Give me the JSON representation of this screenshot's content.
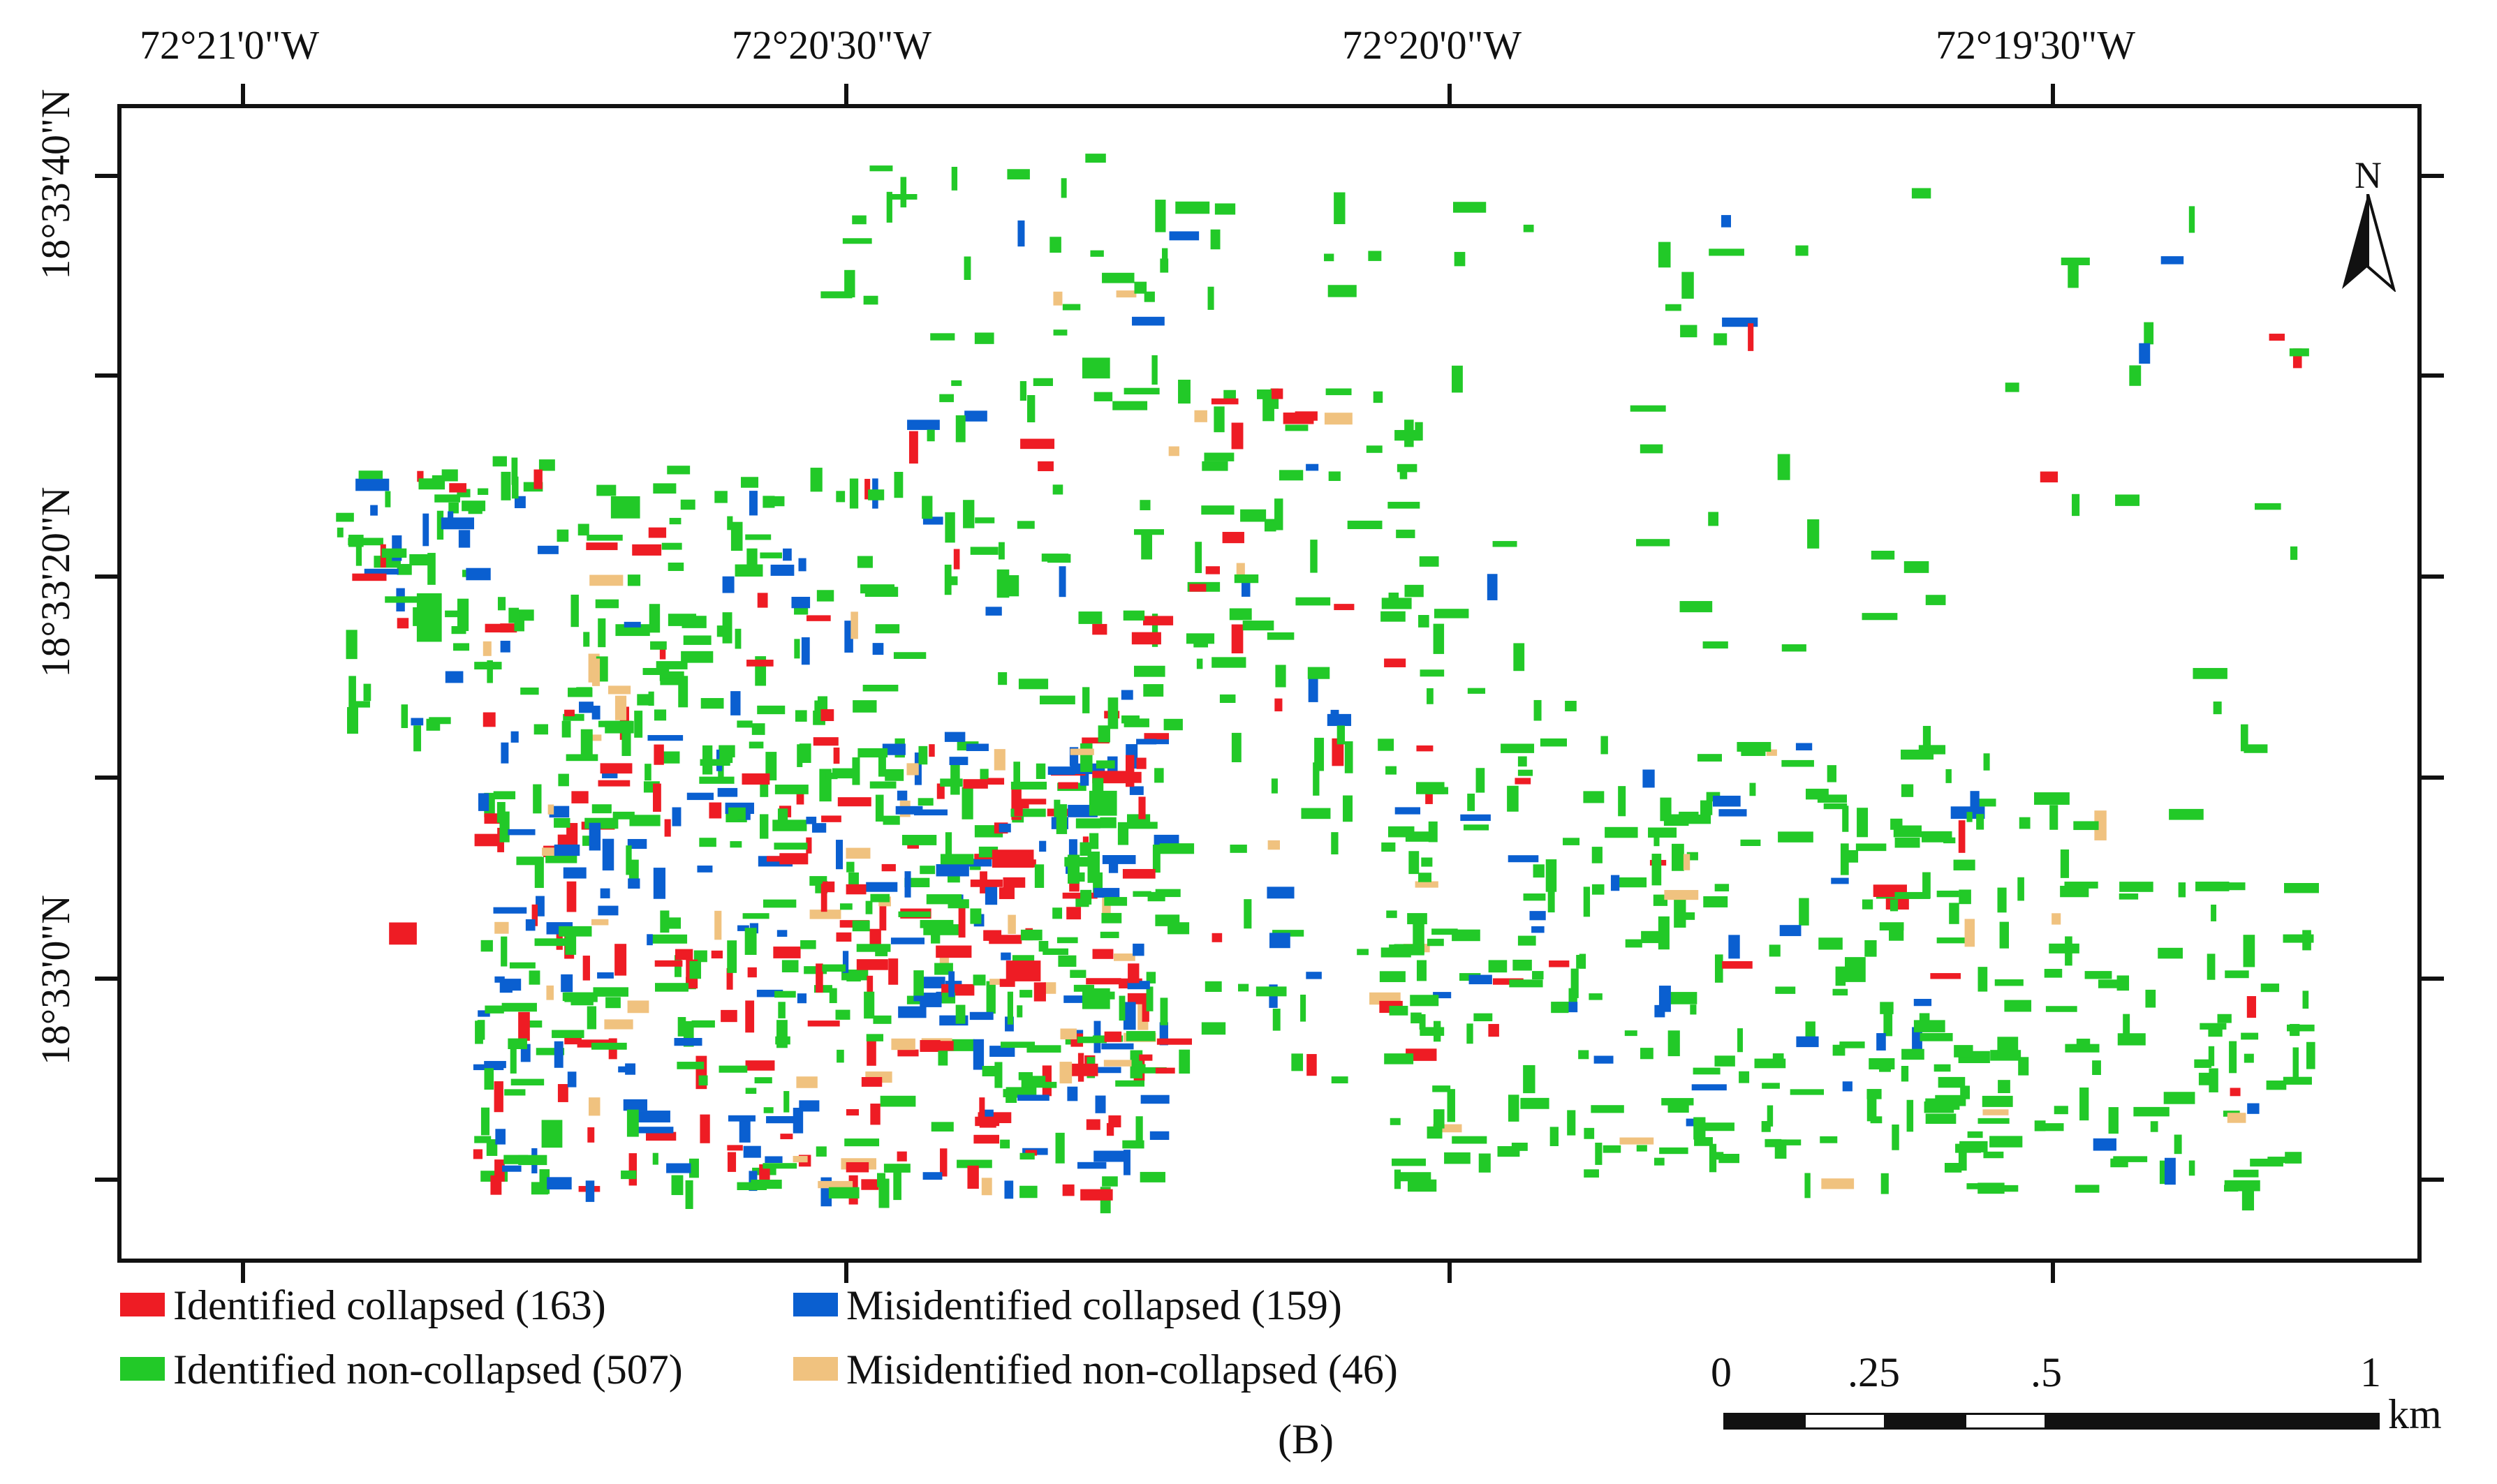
{
  "map": {
    "longitude_labels": [
      "72°21'0\"W",
      "72°20'30\"W",
      "72°20'0\"W",
      "72°19'30\"W"
    ],
    "latitude_labels": [
      "18°33'40\"N",
      "18°33'20\"N",
      "18°33'0\"N"
    ],
    "north_arrow_label": "N",
    "panel_label": "(B)",
    "colors": {
      "identified_collapsed": "#ee1c24",
      "misidentified_collapsed": "#0a5fd0",
      "identified_non_collapsed": "#22c928",
      "misidentified_non_collapsed": "#f0c27f"
    }
  },
  "legend": {
    "identified_collapsed": "Identified collapsed (163)",
    "misidentified_collapsed": "Misidentified collapsed (159)",
    "identified_non_collapsed": "Identified non-collapsed (507)",
    "misidentified_non_collapsed": "Misidentified non-collapsed (46)"
  },
  "scale_bar": {
    "labels": [
      "0",
      ".25",
      ".5",
      "1"
    ],
    "unit": "km"
  }
}
